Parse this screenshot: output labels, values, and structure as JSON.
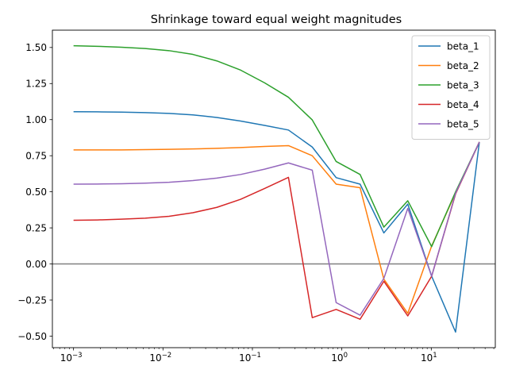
{
  "chart_data": {
    "type": "line",
    "title": "Shrinkage toward equal weight magnitudes",
    "xlabel": "",
    "ylabel": "",
    "xscale": "log",
    "xlim": [
      0.00058,
      52
    ],
    "ylim": [
      -0.58,
      1.62
    ],
    "xticks": [
      {
        "value": 0.001,
        "base": "10",
        "exp": "−3"
      },
      {
        "value": 0.01,
        "base": "10",
        "exp": "−2"
      },
      {
        "value": 0.1,
        "base": "10",
        "exp": "−1"
      },
      {
        "value": 1,
        "base": "10",
        "exp": "0"
      },
      {
        "value": 10,
        "base": "10",
        "exp": "1"
      }
    ],
    "yticks": [
      {
        "value": 1.5,
        "label": "1.50"
      },
      {
        "value": 1.25,
        "label": "1.25"
      },
      {
        "value": 1.0,
        "label": "1.00"
      },
      {
        "value": 0.75,
        "label": "0.75"
      },
      {
        "value": 0.5,
        "label": "0.50"
      },
      {
        "value": 0.25,
        "label": "0.25"
      },
      {
        "value": 0.0,
        "label": "0.00"
      },
      {
        "value": -0.25,
        "label": "−0.25"
      },
      {
        "value": -0.5,
        "label": "−0.50"
      }
    ],
    "hline": {
      "y": 0,
      "color": "#808080"
    },
    "grid": false,
    "legend_position": "top-right",
    "x": [
      0.001,
      0.00185,
      0.00342,
      0.00632,
      0.0117,
      0.0216,
      0.04,
      0.0739,
      0.137,
      0.253,
      0.467,
      0.864,
      1.6,
      2.95,
      5.46,
      10.1,
      18.7,
      34.5
    ],
    "series": [
      {
        "name": "beta_1",
        "color": "#1f77b4",
        "values": [
          1.055,
          1.054,
          1.052,
          1.049,
          1.043,
          1.033,
          1.015,
          0.99,
          0.96,
          0.928,
          0.81,
          0.598,
          0.553,
          0.215,
          0.415,
          -0.085,
          -0.472,
          0.845
        ]
      },
      {
        "name": "beta_2",
        "color": "#ff7f0e",
        "values": [
          0.79,
          0.79,
          0.79,
          0.792,
          0.794,
          0.797,
          0.801,
          0.807,
          0.814,
          0.82,
          0.75,
          0.553,
          0.528,
          -0.105,
          -0.342,
          0.125,
          0.492,
          0.845
        ]
      },
      {
        "name": "beta_3",
        "color": "#2ca02c",
        "values": [
          1.512,
          1.508,
          1.502,
          1.493,
          1.478,
          1.452,
          1.407,
          1.343,
          1.255,
          1.155,
          0.998,
          0.71,
          0.62,
          0.255,
          0.438,
          0.12,
          0.5,
          0.845
        ]
      },
      {
        "name": "beta_4",
        "color": "#d62728",
        "values": [
          0.303,
          0.305,
          0.31,
          0.317,
          0.33,
          0.355,
          0.392,
          0.448,
          0.523,
          0.6,
          -0.372,
          -0.315,
          -0.383,
          -0.12,
          -0.36,
          -0.085,
          0.485,
          0.845
        ]
      },
      {
        "name": "beta_5",
        "color": "#9467bd",
        "values": [
          0.553,
          0.554,
          0.556,
          0.56,
          0.566,
          0.578,
          0.595,
          0.62,
          0.657,
          0.7,
          0.65,
          -0.268,
          -0.355,
          -0.1,
          0.385,
          -0.085,
          0.49,
          0.845
        ]
      }
    ]
  }
}
